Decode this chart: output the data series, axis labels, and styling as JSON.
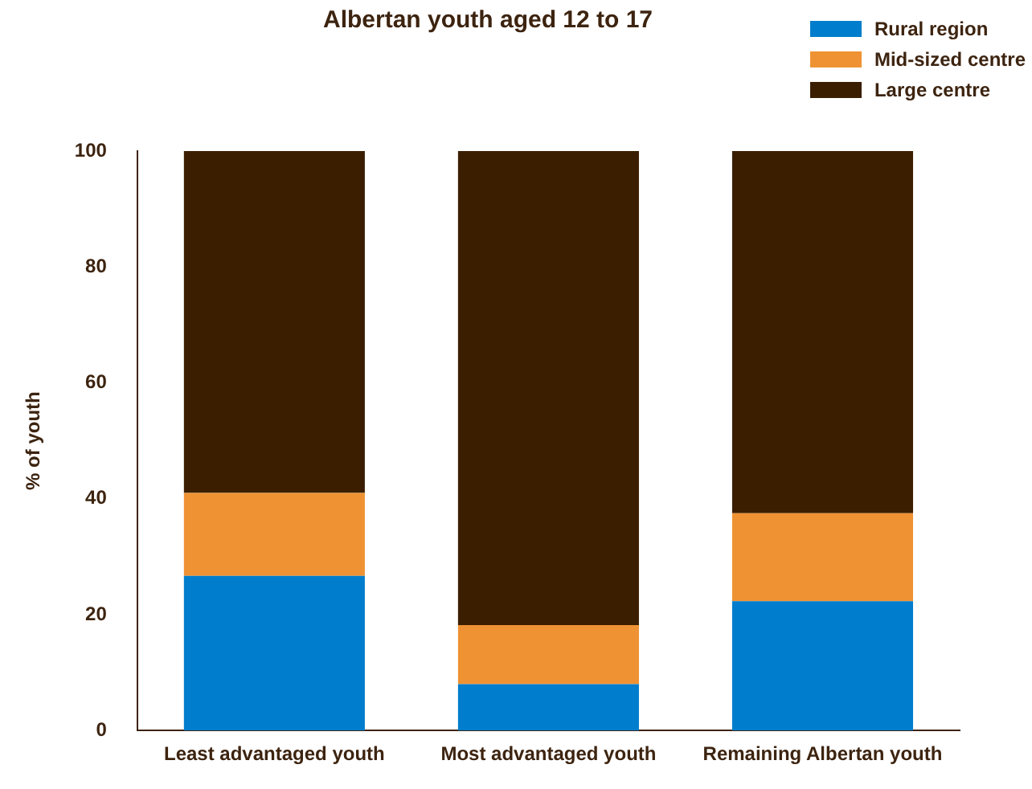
{
  "chart_data": {
    "type": "bar",
    "title": "Albertan youth aged 12 to 17",
    "ylabel": "% of youth",
    "categories": [
      "Least advantaged youth",
      "Most advantaged youth",
      "Remaining Albertan youth"
    ],
    "stacked": true,
    "series": [
      {
        "name": "Rural region",
        "color": "#007dcc",
        "values": [
          26.7,
          8.0,
          22.3
        ]
      },
      {
        "name": "Mid-sized centre",
        "color": "#ef9233",
        "values": [
          14.3,
          10.2,
          15.2
        ]
      },
      {
        "name": "Large centre",
        "color": "#3b1e00",
        "values": [
          59.0,
          81.8,
          62.5
        ]
      }
    ],
    "ylim": [
      0,
      100
    ],
    "yticks": [
      0,
      20,
      40,
      60,
      80,
      100
    ],
    "grid": false,
    "legend": "top right"
  }
}
